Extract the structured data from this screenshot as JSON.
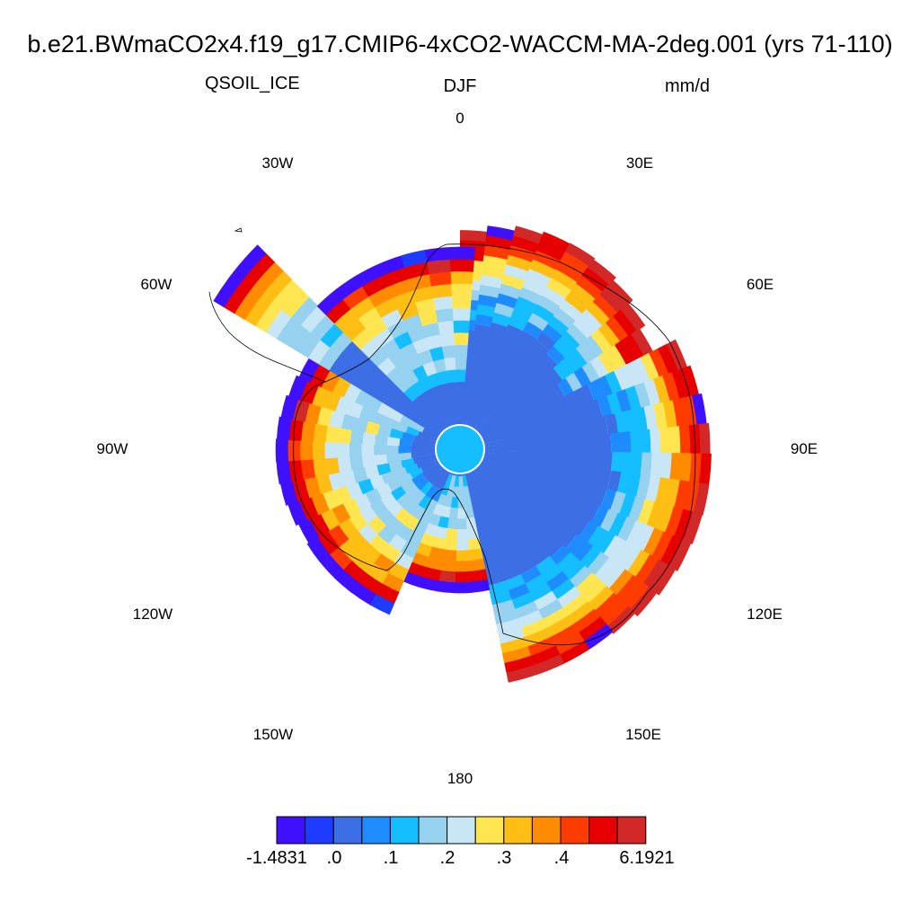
{
  "title": "b.e21.BWmaCO2x4.f19_g17.CMIP6-4xCO2-WACCM-MA-2deg.001 (yrs 71-110)",
  "subtitle_left": "QSOIL_ICE",
  "subtitle_center": "DJF",
  "subtitle_right": "mm/d",
  "chart_data": {
    "type": "heatmap",
    "projection": "south-polar-stereographic",
    "variable": "QSOIL_ICE",
    "season": "DJF",
    "units": "mm/d",
    "longitude_labels": [
      "0",
      "30E",
      "60E",
      "90E",
      "120E",
      "150E",
      "180",
      "150W",
      "120W",
      "90W",
      "60W",
      "30W"
    ],
    "colorbar": {
      "colors": [
        "#3f0fff",
        "#1e3cff",
        "#3c6ee6",
        "#1e8cff",
        "#14beff",
        "#96d2f0",
        "#c8e6f5",
        "#ffe650",
        "#ffbe14",
        "#ff8c00",
        "#ff3c00",
        "#e60000",
        "#d22828"
      ],
      "tick_labels": [
        "-1.4831",
        ".0",
        ".1",
        ".2",
        ".3",
        ".4",
        "6.1921"
      ]
    },
    "qualitative_pattern": "Interior plateau ~0.0 (blue); values increase toward the ice-sheet margin, reaching 0.3 to >0.4 (orange/red) along East Antarctic coast; negative (purple) patches at outer edges near Antarctic Peninsula and 90E."
  }
}
